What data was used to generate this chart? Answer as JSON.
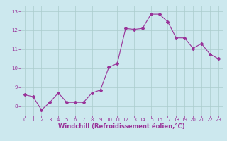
{
  "x": [
    0,
    1,
    2,
    3,
    4,
    5,
    6,
    7,
    8,
    9,
    10,
    11,
    12,
    13,
    14,
    15,
    16,
    17,
    18,
    19,
    20,
    21,
    22,
    23
  ],
  "y": [
    8.6,
    8.5,
    7.8,
    8.2,
    8.7,
    8.2,
    8.2,
    8.2,
    8.7,
    8.85,
    10.05,
    10.25,
    12.1,
    12.05,
    12.1,
    12.85,
    12.85,
    12.45,
    11.6,
    11.6,
    11.05,
    11.3,
    10.75,
    10.5
  ],
  "line_color": "#993399",
  "marker": "D",
  "marker_size": 2.0,
  "bg_color": "#cce8ee",
  "grid_color": "#aacccc",
  "xlabel": "Windchill (Refroidissement éolien,°C)",
  "xlabel_color": "#993399",
  "tick_color": "#993399",
  "ylim": [
    7.5,
    13.3
  ],
  "yticks": [
    8,
    9,
    10,
    11,
    12,
    13
  ],
  "xticks": [
    0,
    1,
    2,
    3,
    4,
    5,
    6,
    7,
    8,
    9,
    10,
    11,
    12,
    13,
    14,
    15,
    16,
    17,
    18,
    19,
    20,
    21,
    22,
    23
  ],
  "label_fontsize": 6.0,
  "tick_fontsize": 5.0
}
